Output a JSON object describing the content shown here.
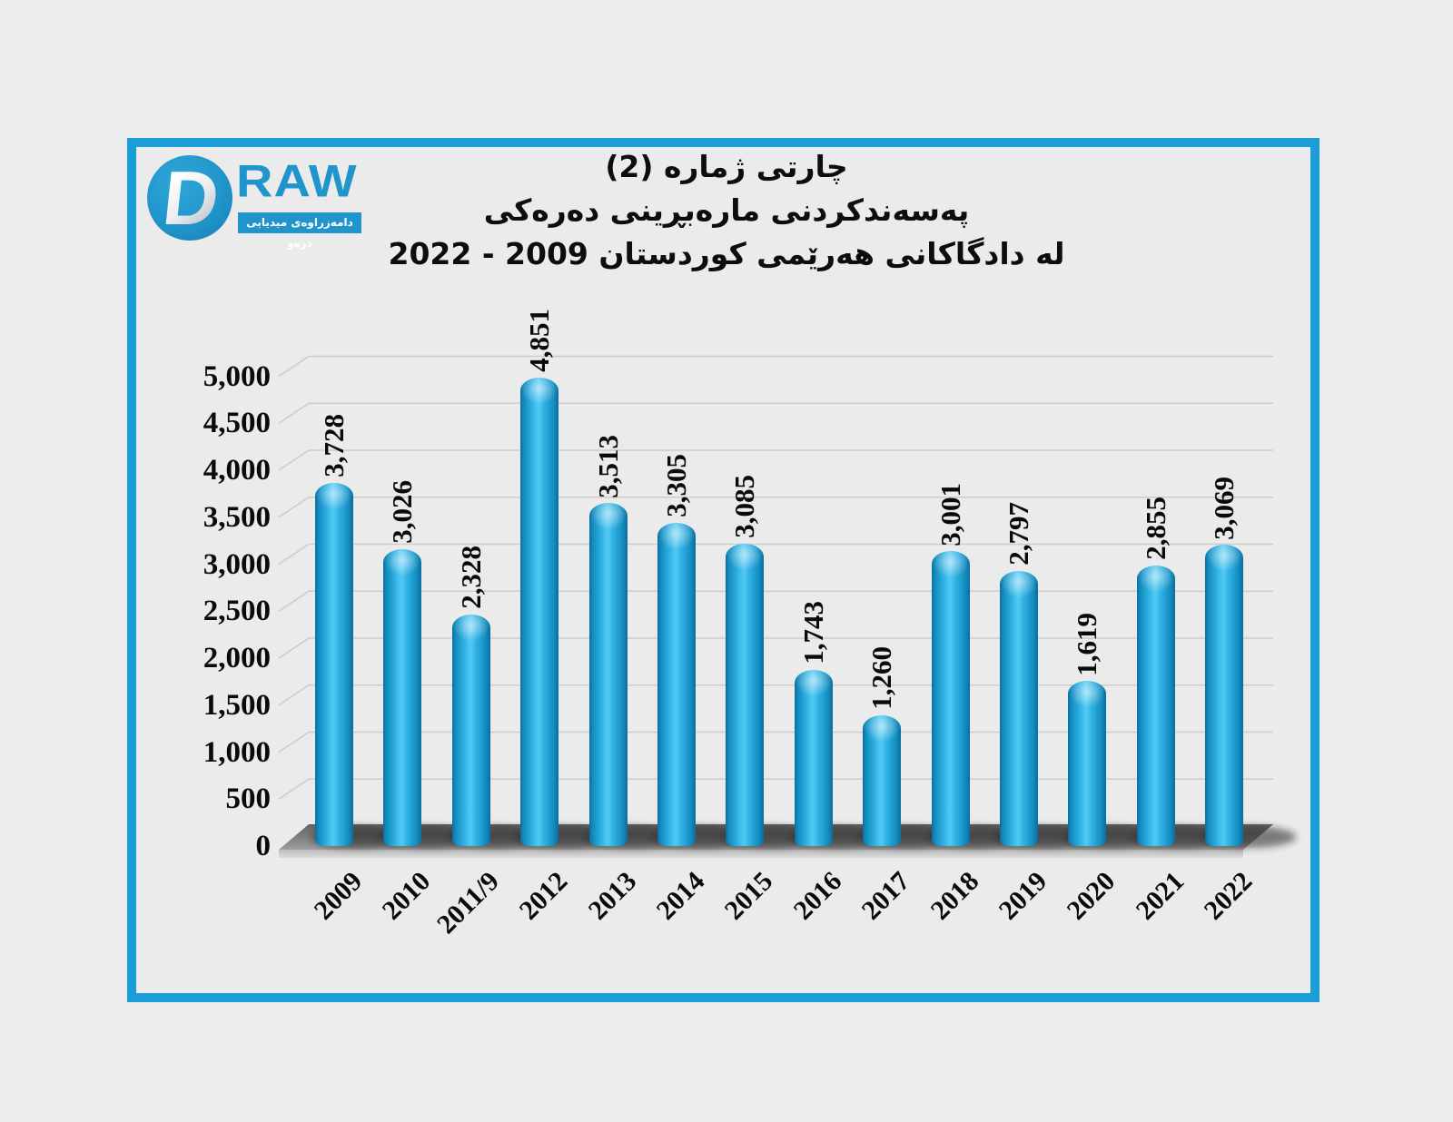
{
  "logo": {
    "d": "D",
    "raw": "RAW",
    "tagline": "دامەزراوەی میدیایی درەو",
    "brand_color": "#2095cb"
  },
  "title": {
    "line1": "چارتی ژماره (2)",
    "line2": "پەسەندکردنی مارەبڕینی دەرەکی",
    "line3": "له دادگاکانی هەرێمی کوردستان 2009 - 2022"
  },
  "frame_color": "#1b9dd9",
  "chart_data": {
    "type": "bar",
    "style": "3d-cylinder",
    "categories": [
      "2009",
      "2010",
      "2011/9",
      "2012",
      "2013",
      "2014",
      "2015",
      "2016",
      "2017",
      "2018",
      "2019",
      "2020",
      "2021",
      "2022"
    ],
    "values": [
      3728,
      3026,
      2328,
      4851,
      3513,
      3305,
      3085,
      1743,
      1260,
      3001,
      2797,
      1619,
      2855,
      3069
    ],
    "value_labels": [
      "3,728",
      "3,026",
      "2,328",
      "4,851",
      "3,513",
      "3,305",
      "3,085",
      "1,743",
      "1,260",
      "3,001",
      "2,797",
      "1,619",
      "2,855",
      "3,069"
    ],
    "y_ticks": [
      "0",
      "500",
      "1,000",
      "1,500",
      "2,000",
      "2,500",
      "3,000",
      "3,500",
      "4,000",
      "4,500",
      "5,000"
    ],
    "ylim": [
      0,
      5000
    ],
    "y_step": 500,
    "grid": "on",
    "legend": "none",
    "bar_color": "#1ba1d9",
    "floor_color": "#7b7b7b",
    "gridline_color": "#cccccc"
  }
}
